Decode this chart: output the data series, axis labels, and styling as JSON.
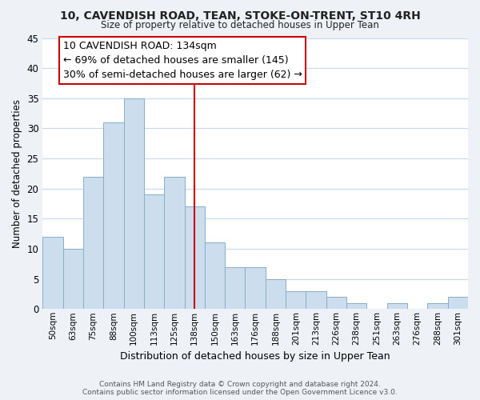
{
  "title_line1": "10, CAVENDISH ROAD, TEAN, STOKE-ON-TRENT, ST10 4RH",
  "title_line2": "Size of property relative to detached houses in Upper Tean",
  "xlabel": "Distribution of detached houses by size in Upper Tean",
  "ylabel": "Number of detached properties",
  "categories": [
    "50sqm",
    "63sqm",
    "75sqm",
    "88sqm",
    "100sqm",
    "113sqm",
    "125sqm",
    "138sqm",
    "150sqm",
    "163sqm",
    "176sqm",
    "188sqm",
    "201sqm",
    "213sqm",
    "226sqm",
    "238sqm",
    "251sqm",
    "263sqm",
    "276sqm",
    "288sqm",
    "301sqm"
  ],
  "values": [
    12,
    10,
    22,
    31,
    35,
    19,
    22,
    17,
    11,
    7,
    7,
    5,
    3,
    3,
    2,
    1,
    0,
    1,
    0,
    1,
    2
  ],
  "bar_color": "#ccdded",
  "bar_edge_color": "#88aec8",
  "vline_x_index": 7,
  "vline_color": "#cc0000",
  "annotation_line1": "10 CAVENDISH ROAD: 134sqm",
  "annotation_line2": "← 69% of detached houses are smaller (145)",
  "annotation_line3": "30% of semi-detached houses are larger (62) →",
  "annotation_fontsize": 9,
  "box_edge_color": "#cc0000",
  "ylim": [
    0,
    45
  ],
  "yticks": [
    0,
    5,
    10,
    15,
    20,
    25,
    30,
    35,
    40,
    45
  ],
  "footer_line1": "Contains HM Land Registry data © Crown copyright and database right 2024.",
  "footer_line2": "Contains public sector information licensed under the Open Government Licence v3.0.",
  "background_color": "#eef2f7",
  "plot_bg_color": "#ffffff",
  "grid_color": "#c8d8e8"
}
